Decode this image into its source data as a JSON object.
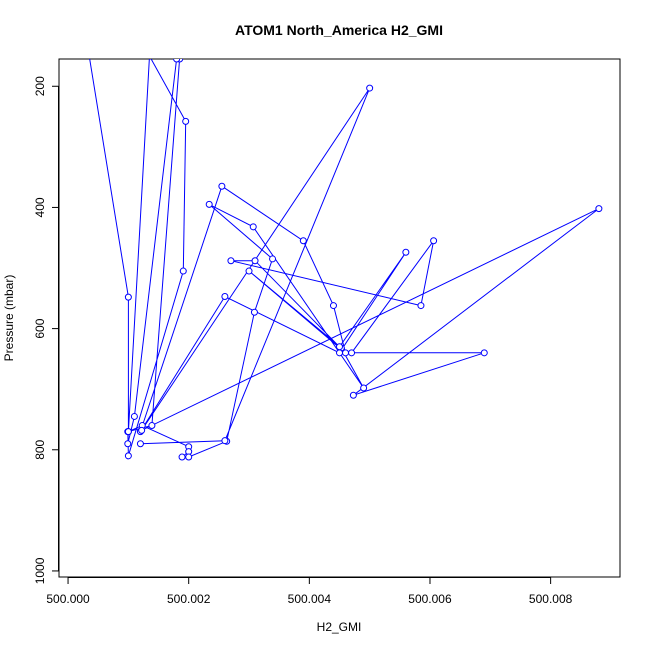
{
  "chart_data": {
    "type": "line",
    "title": "ATOM1 North_America H2_GMI",
    "xlabel": "H2_GMI",
    "ylabel": "Pressure (mbar)",
    "xlim": [
      499.99985,
      500.00915
    ],
    "ylim": [
      1010,
      155
    ],
    "y_reversed": true,
    "grid": false,
    "legend": "none",
    "x_ticks": [
      500.0,
      500.002,
      500.004,
      500.006,
      500.008
    ],
    "x_tick_labels": [
      "500.000",
      "500.002",
      "500.004",
      "500.006",
      "500.008"
    ],
    "y_ticks": [
      200,
      400,
      600,
      800,
      1000
    ],
    "y_tick_labels": [
      "200",
      "400",
      "600",
      "800",
      "1000"
    ],
    "series": [
      {
        "color": "#0000ff",
        "marker": "open-circle",
        "x": [
          500.00035,
          500.001,
          500.001,
          500.00135,
          500.00195,
          500.00191,
          500.001,
          500.00099,
          500.00139,
          500.00185,
          500.0018,
          500.0018,
          500.0011,
          500.00099,
          500.001,
          500.00123,
          500.002,
          500.002,
          500.00189,
          500.002,
          500.00263,
          500.00309,
          500.00339,
          500.00234,
          500.00307,
          500.0049,
          500.00453,
          500.003,
          500.0046,
          500.0044,
          500.0039,
          500.00255,
          500.0012,
          500.0026,
          500.0045,
          500.0056,
          500.0045,
          500.0031,
          500.0027,
          500.00585,
          500.00606,
          500.0047,
          500.0069,
          500.00473,
          500.0088,
          500.00122,
          500.005,
          500.0026,
          500.0012
        ],
        "y": [
          150,
          548,
          770,
          150,
          258,
          505,
          810,
          770,
          760,
          155,
          150,
          155,
          745,
          790,
          770,
          760,
          795,
          803,
          812,
          812,
          786,
          573,
          485,
          395,
          432,
          698,
          632,
          505,
          640,
          562,
          455,
          365,
          770,
          547,
          640,
          474,
          630,
          488,
          488,
          562,
          455,
          640,
          640,
          710,
          402,
          768,
          203,
          785,
          790
        ]
      }
    ]
  }
}
